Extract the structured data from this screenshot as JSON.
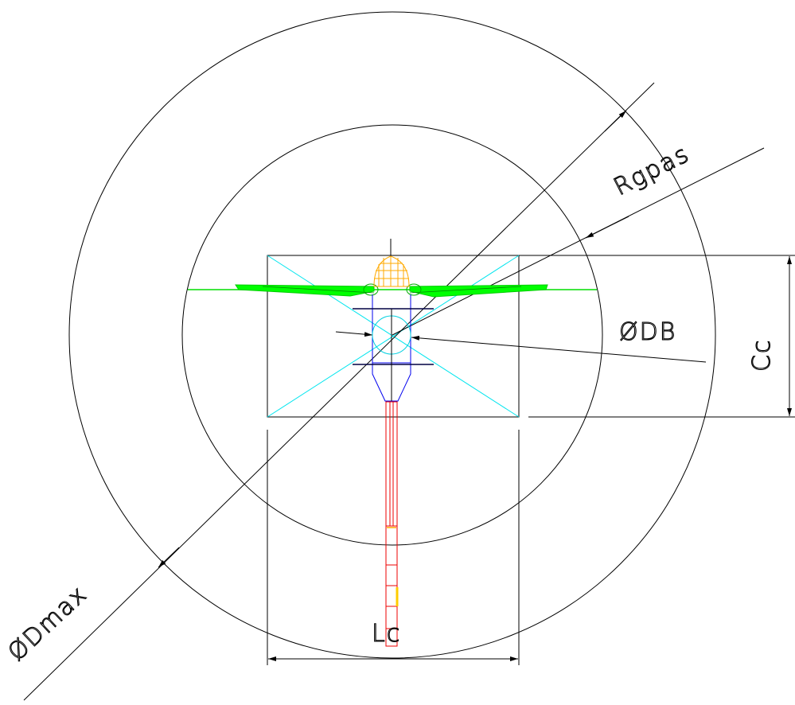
{
  "drawing": {
    "labels": {
      "d_max": "ØDmax",
      "r_gpas": "Rgpas",
      "d_b": "ØDB",
      "c_c": "Cc",
      "l_c": "Lc"
    },
    "colors": {
      "outline": "#000000",
      "diagonal": "#00e5ee",
      "rotor": "#00ff00",
      "hub": "#ffaa00",
      "body": "#0000ff",
      "tail": "#ff0000"
    }
  }
}
